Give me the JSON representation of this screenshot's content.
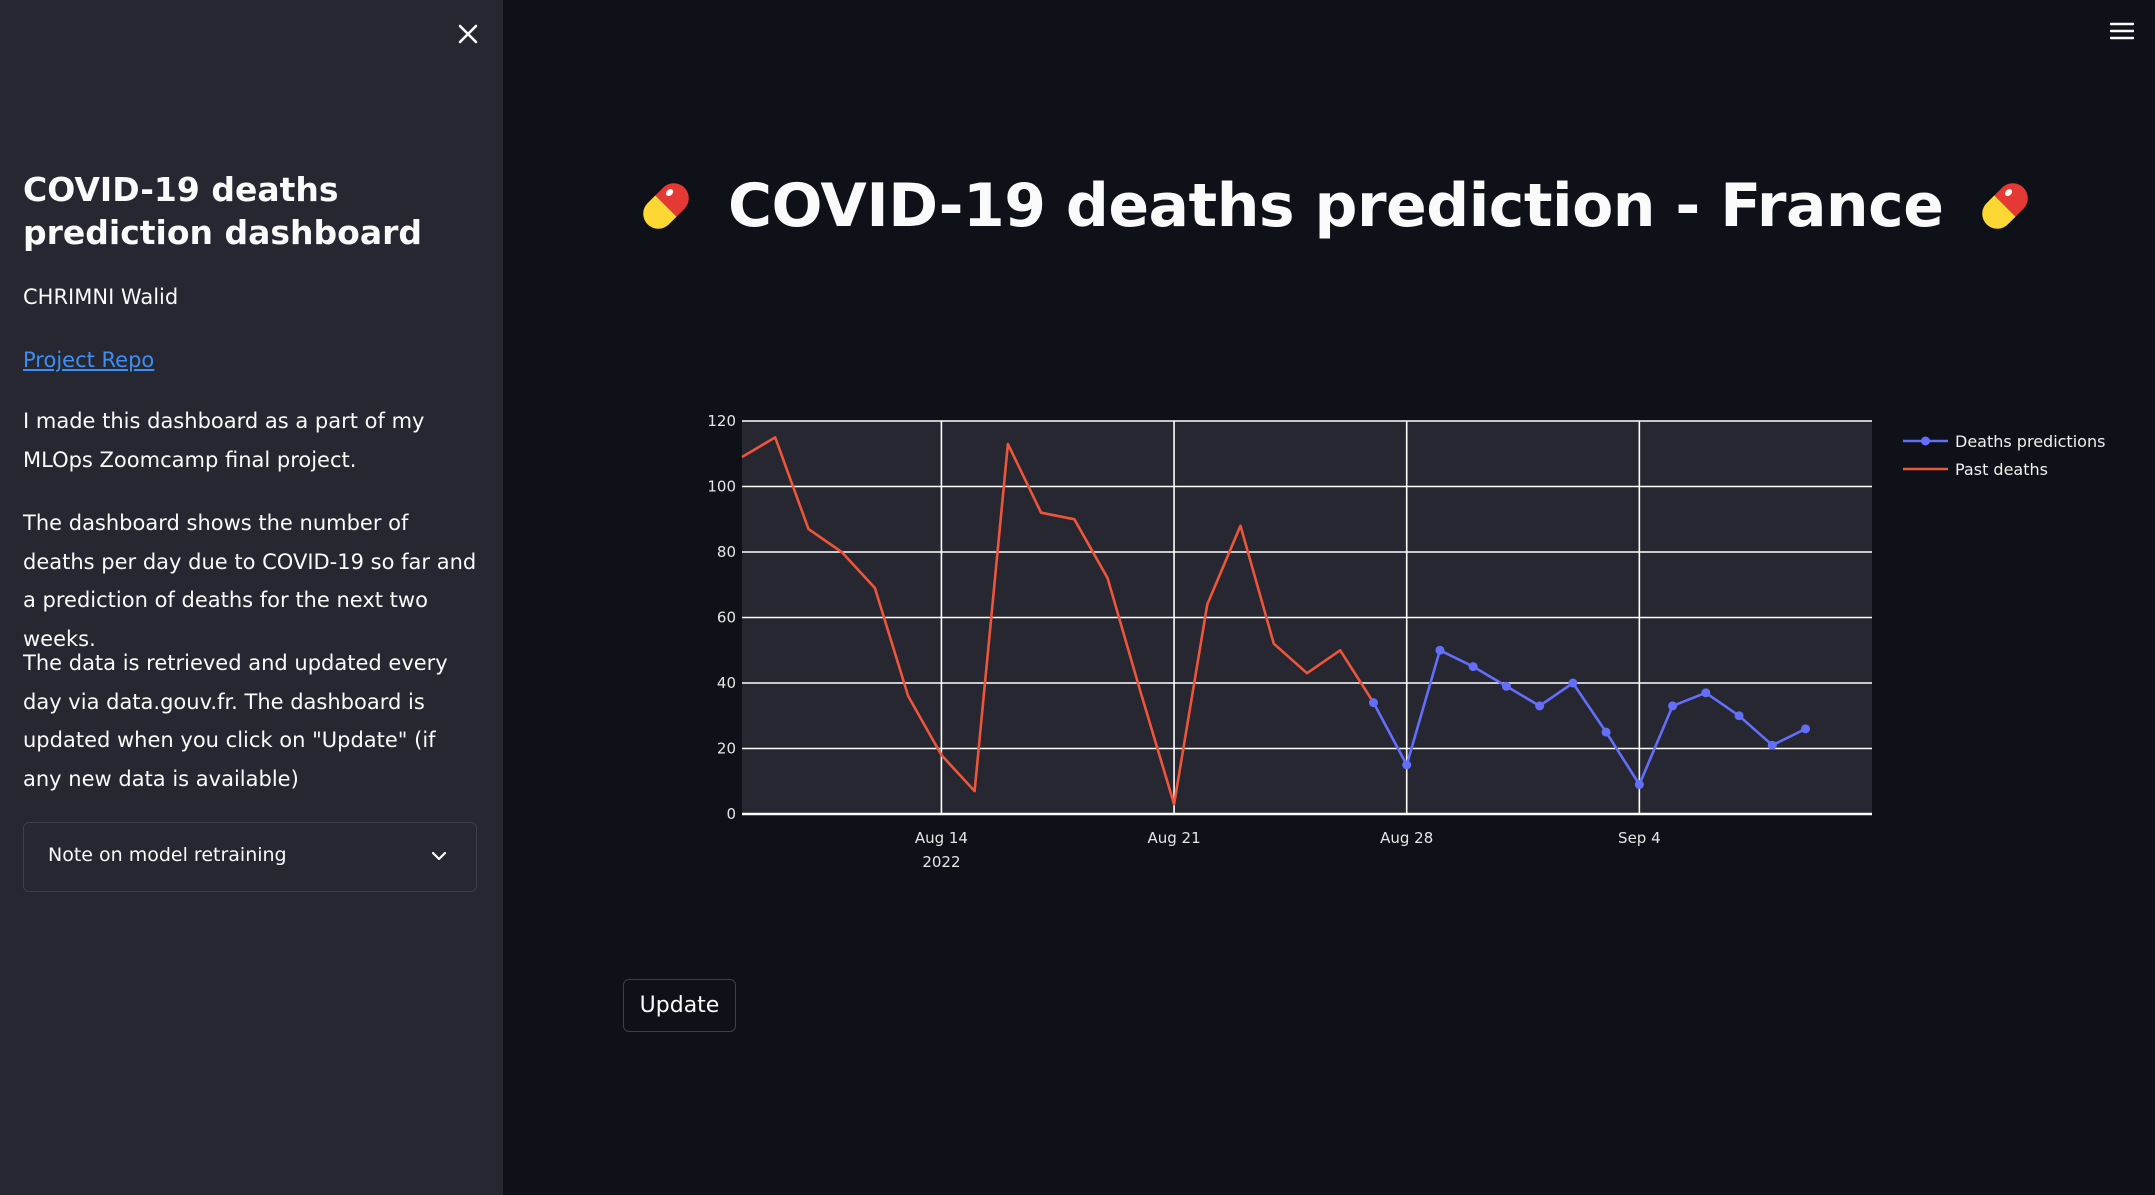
{
  "sidebar": {
    "title": "COVID-19 deaths prediction dashboard",
    "author": "CHRIMNI Walid",
    "link_label": "Project Repo",
    "paragraphs": [
      "I made this dashboard as a part of my MLOps Zoomcamp final project.",
      "The dashboard shows the number of deaths per day due to COVID-19 so far and a prediction of deaths for the next two weeks.",
      "The data is retrieved and updated every day via data.gouv.fr. The dashboard is updated when you click on \"Update\" (if any new data is available)"
    ],
    "expander_label": "Note on model retraining"
  },
  "main": {
    "title": "COVID-19 deaths prediction - France",
    "update_label": "Update"
  },
  "icons": [
    "close-icon",
    "menu-icon",
    "pill-icon",
    "chevron-down-icon"
  ],
  "chart_data": {
    "type": "line",
    "x_start": "2022-08-08",
    "xlim": [
      "2022-08-08",
      "2022-09-11"
    ],
    "ylim": [
      0,
      120
    ],
    "x_ticks": [
      "2022-08-14",
      "2022-08-21",
      "2022-08-28",
      "2022-09-04"
    ],
    "x_tick_labels": [
      "Aug 14",
      "Aug 21",
      "Aug 28",
      "Sep 4"
    ],
    "x_year_label": "2022",
    "y_ticks": [
      0,
      20,
      40,
      60,
      80,
      100,
      120
    ],
    "grid": true,
    "legend_position": "top-right",
    "series": [
      {
        "name": "Deaths predictions",
        "color": "#636efa",
        "markers": true,
        "x": [
          "2022-08-27",
          "2022-08-28",
          "2022-08-29",
          "2022-08-30",
          "2022-08-31",
          "2022-09-01",
          "2022-09-02",
          "2022-09-03",
          "2022-09-04",
          "2022-09-05",
          "2022-09-06",
          "2022-09-07",
          "2022-09-08",
          "2022-09-09"
        ],
        "values": [
          34,
          15,
          50,
          45,
          39,
          33,
          40,
          25,
          9,
          33,
          37,
          30,
          21,
          26
        ]
      },
      {
        "name": "Past deaths",
        "color": "#ef553b",
        "markers": false,
        "x": [
          "2022-08-08",
          "2022-08-09",
          "2022-08-10",
          "2022-08-11",
          "2022-08-12",
          "2022-08-13",
          "2022-08-14",
          "2022-08-15",
          "2022-08-16",
          "2022-08-17",
          "2022-08-18",
          "2022-08-19",
          "2022-08-20",
          "2022-08-21",
          "2022-08-22",
          "2022-08-23",
          "2022-08-24",
          "2022-08-25",
          "2022-08-26",
          "2022-08-27"
        ],
        "values": [
          109,
          115,
          87,
          80,
          69,
          36,
          18,
          7,
          113,
          92,
          90,
          72,
          37,
          3,
          64,
          88,
          52,
          43,
          50,
          34
        ]
      }
    ]
  }
}
